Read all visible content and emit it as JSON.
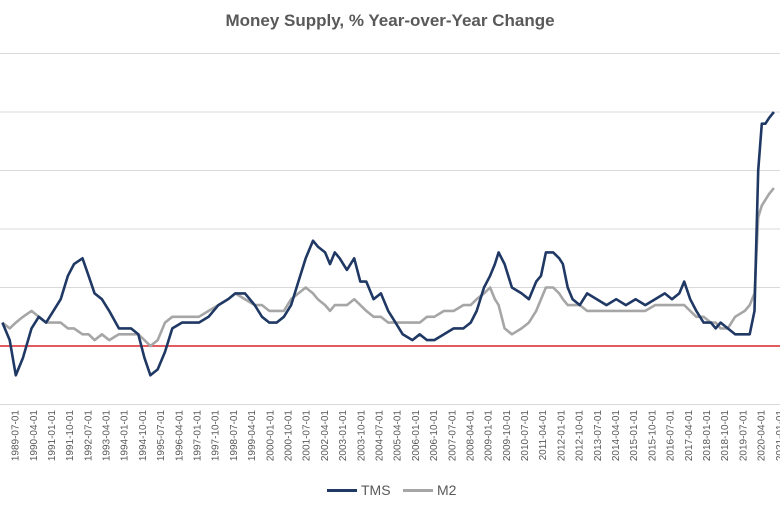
{
  "chart_data": {
    "type": "line",
    "title": "Money Supply, % Year-over-Year Change",
    "xlabel": "",
    "ylabel": "",
    "x_tick_labels": [
      "1989-07-01",
      "1990-04-01",
      "1991-01-01",
      "1991-10-01",
      "1992-07-01",
      "1993-04-01",
      "1994-01-01",
      "1994-10-01",
      "1995-07-01",
      "1996-04-01",
      "1997-01-01",
      "1997-10-01",
      "1998-07-01",
      "1999-04-01",
      "2000-01-01",
      "2000-10-01",
      "2001-07-01",
      "2002-04-01",
      "2003-01-01",
      "2003-10-01",
      "2004-07-01",
      "2005-04-01",
      "2006-01-01",
      "2006-10-01",
      "2007-07-01",
      "2008-04-01",
      "2009-01-01",
      "2009-10-01",
      "2010-07-01",
      "2011-04-01",
      "2012-01-01",
      "2012-10-01",
      "2013-07-01",
      "2014-04-01",
      "2015-01-01",
      "2015-10-01",
      "2016-07-01",
      "2017-04-01",
      "2018-01-01",
      "2018-10-01",
      "2019-07-01",
      "2020-04-01",
      "2021-01-01"
    ],
    "y_gridlines": [
      -10,
      0,
      10,
      20,
      30,
      40,
      50,
      60
    ],
    "ylim": [
      -10,
      62
    ],
    "grid": true,
    "reference_line": {
      "y": 0,
      "color": "#d62728"
    },
    "legend_position": "bottom",
    "series": [
      {
        "name": "TMS",
        "color": "#1f3864",
        "points": [
          [
            1989.0,
            4
          ],
          [
            1989.3,
            1
          ],
          [
            1989.55,
            -5
          ],
          [
            1989.85,
            -2
          ],
          [
            1990.2,
            3
          ],
          [
            1990.5,
            5
          ],
          [
            1990.8,
            4
          ],
          [
            1991.1,
            6
          ],
          [
            1991.4,
            8
          ],
          [
            1991.7,
            12
          ],
          [
            1991.95,
            14
          ],
          [
            1992.3,
            15
          ],
          [
            1992.55,
            12
          ],
          [
            1992.8,
            9
          ],
          [
            1993.1,
            8
          ],
          [
            1993.4,
            6
          ],
          [
            1993.8,
            3
          ],
          [
            1994.3,
            3
          ],
          [
            1994.6,
            2
          ],
          [
            1994.85,
            -2
          ],
          [
            1995.1,
            -5
          ],
          [
            1995.4,
            -4
          ],
          [
            1995.7,
            -1
          ],
          [
            1996.0,
            3
          ],
          [
            1996.4,
            4
          ],
          [
            1996.8,
            4
          ],
          [
            1997.1,
            4
          ],
          [
            1997.5,
            5
          ],
          [
            1997.9,
            7
          ],
          [
            1998.3,
            8
          ],
          [
            1998.6,
            9
          ],
          [
            1999.0,
            9
          ],
          [
            1999.4,
            7
          ],
          [
            1999.7,
            5
          ],
          [
            2000.0,
            4
          ],
          [
            2000.3,
            4
          ],
          [
            2000.6,
            5
          ],
          [
            2000.9,
            7
          ],
          [
            2001.2,
            11
          ],
          [
            2001.5,
            15
          ],
          [
            2001.8,
            18
          ],
          [
            2002.0,
            17
          ],
          [
            2002.3,
            16
          ],
          [
            2002.5,
            14
          ],
          [
            2002.7,
            16
          ],
          [
            2002.9,
            15
          ],
          [
            2003.2,
            13
          ],
          [
            2003.5,
            15
          ],
          [
            2003.75,
            11
          ],
          [
            2004.0,
            11
          ],
          [
            2004.3,
            8
          ],
          [
            2004.6,
            9
          ],
          [
            2004.9,
            6
          ],
          [
            2005.2,
            4
          ],
          [
            2005.5,
            2
          ],
          [
            2005.9,
            1
          ],
          [
            2006.2,
            2
          ],
          [
            2006.5,
            1
          ],
          [
            2006.8,
            1
          ],
          [
            2007.2,
            2
          ],
          [
            2007.6,
            3
          ],
          [
            2008.0,
            3
          ],
          [
            2008.3,
            4
          ],
          [
            2008.55,
            6
          ],
          [
            2008.85,
            10
          ],
          [
            2009.1,
            12
          ],
          [
            2009.3,
            14
          ],
          [
            2009.45,
            16
          ],
          [
            2009.7,
            14
          ],
          [
            2010.0,
            10
          ],
          [
            2010.4,
            9
          ],
          [
            2010.7,
            8
          ],
          [
            2011.0,
            11
          ],
          [
            2011.2,
            12
          ],
          [
            2011.4,
            16
          ],
          [
            2011.7,
            16
          ],
          [
            2011.95,
            15
          ],
          [
            2012.1,
            14
          ],
          [
            2012.3,
            10
          ],
          [
            2012.5,
            8
          ],
          [
            2012.8,
            7
          ],
          [
            2013.1,
            9
          ],
          [
            2013.5,
            8
          ],
          [
            2013.9,
            7
          ],
          [
            2014.3,
            8
          ],
          [
            2014.7,
            7
          ],
          [
            2015.1,
            8
          ],
          [
            2015.5,
            7
          ],
          [
            2015.9,
            8
          ],
          [
            2016.3,
            9
          ],
          [
            2016.6,
            8
          ],
          [
            2016.9,
            9
          ],
          [
            2017.1,
            11
          ],
          [
            2017.35,
            8
          ],
          [
            2017.6,
            6
          ],
          [
            2017.9,
            4
          ],
          [
            2018.2,
            4
          ],
          [
            2018.4,
            3
          ],
          [
            2018.6,
            4
          ],
          [
            2018.9,
            3
          ],
          [
            2019.2,
            2
          ],
          [
            2019.6,
            2
          ],
          [
            2019.8,
            2
          ],
          [
            2020.0,
            6
          ],
          [
            2020.15,
            30
          ],
          [
            2020.3,
            38
          ],
          [
            2020.45,
            38
          ],
          [
            2020.6,
            39
          ],
          [
            2020.8,
            40
          ]
        ]
      },
      {
        "name": "M2",
        "color": "#a6a6a6",
        "points": [
          [
            1989.0,
            4
          ],
          [
            1989.3,
            3
          ],
          [
            1989.55,
            4
          ],
          [
            1989.85,
            5
          ],
          [
            1990.2,
            6
          ],
          [
            1990.5,
            5
          ],
          [
            1990.8,
            4
          ],
          [
            1991.1,
            4
          ],
          [
            1991.4,
            4
          ],
          [
            1991.7,
            3
          ],
          [
            1991.95,
            3
          ],
          [
            1992.3,
            2
          ],
          [
            1992.55,
            2
          ],
          [
            1992.8,
            1
          ],
          [
            1993.1,
            2
          ],
          [
            1993.4,
            1
          ],
          [
            1993.8,
            2
          ],
          [
            1994.3,
            2
          ],
          [
            1994.6,
            2
          ],
          [
            1994.85,
            1
          ],
          [
            1995.1,
            0
          ],
          [
            1995.4,
            1
          ],
          [
            1995.7,
            4
          ],
          [
            1996.0,
            5
          ],
          [
            1996.4,
            5
          ],
          [
            1996.8,
            5
          ],
          [
            1997.1,
            5
          ],
          [
            1997.5,
            6
          ],
          [
            1997.9,
            7
          ],
          [
            1998.3,
            8
          ],
          [
            1998.6,
            9
          ],
          [
            1999.0,
            8
          ],
          [
            1999.4,
            7
          ],
          [
            1999.7,
            7
          ],
          [
            2000.0,
            6
          ],
          [
            2000.3,
            6
          ],
          [
            2000.6,
            6
          ],
          [
            2000.9,
            8
          ],
          [
            2001.2,
            9
          ],
          [
            2001.5,
            10
          ],
          [
            2001.8,
            9
          ],
          [
            2002.0,
            8
          ],
          [
            2002.3,
            7
          ],
          [
            2002.5,
            6
          ],
          [
            2002.7,
            7
          ],
          [
            2002.9,
            7
          ],
          [
            2003.2,
            7
          ],
          [
            2003.5,
            8
          ],
          [
            2003.75,
            7
          ],
          [
            2004.0,
            6
          ],
          [
            2004.3,
            5
          ],
          [
            2004.6,
            5
          ],
          [
            2004.9,
            4
          ],
          [
            2005.2,
            4
          ],
          [
            2005.5,
            4
          ],
          [
            2005.9,
            4
          ],
          [
            2006.2,
            4
          ],
          [
            2006.5,
            5
          ],
          [
            2006.8,
            5
          ],
          [
            2007.2,
            6
          ],
          [
            2007.6,
            6
          ],
          [
            2008.0,
            7
          ],
          [
            2008.3,
            7
          ],
          [
            2008.55,
            8
          ],
          [
            2008.85,
            9
          ],
          [
            2009.1,
            10
          ],
          [
            2009.3,
            8
          ],
          [
            2009.45,
            7
          ],
          [
            2009.7,
            3
          ],
          [
            2010.0,
            2
          ],
          [
            2010.4,
            3
          ],
          [
            2010.7,
            4
          ],
          [
            2011.0,
            6
          ],
          [
            2011.2,
            8
          ],
          [
            2011.4,
            10
          ],
          [
            2011.7,
            10
          ],
          [
            2011.95,
            9
          ],
          [
            2012.1,
            8
          ],
          [
            2012.3,
            7
          ],
          [
            2012.5,
            7
          ],
          [
            2012.8,
            7
          ],
          [
            2013.1,
            6
          ],
          [
            2013.5,
            6
          ],
          [
            2013.9,
            6
          ],
          [
            2014.3,
            6
          ],
          [
            2014.7,
            6
          ],
          [
            2015.1,
            6
          ],
          [
            2015.5,
            6
          ],
          [
            2015.9,
            7
          ],
          [
            2016.3,
            7
          ],
          [
            2016.6,
            7
          ],
          [
            2016.9,
            7
          ],
          [
            2017.1,
            7
          ],
          [
            2017.35,
            6
          ],
          [
            2017.6,
            5
          ],
          [
            2017.9,
            5
          ],
          [
            2018.2,
            4
          ],
          [
            2018.4,
            4
          ],
          [
            2018.6,
            3
          ],
          [
            2018.9,
            3
          ],
          [
            2019.2,
            5
          ],
          [
            2019.6,
            6
          ],
          [
            2019.8,
            7
          ],
          [
            2020.0,
            9
          ],
          [
            2020.15,
            22
          ],
          [
            2020.3,
            24
          ],
          [
            2020.45,
            25
          ],
          [
            2020.6,
            26
          ],
          [
            2020.8,
            27
          ]
        ]
      }
    ]
  }
}
